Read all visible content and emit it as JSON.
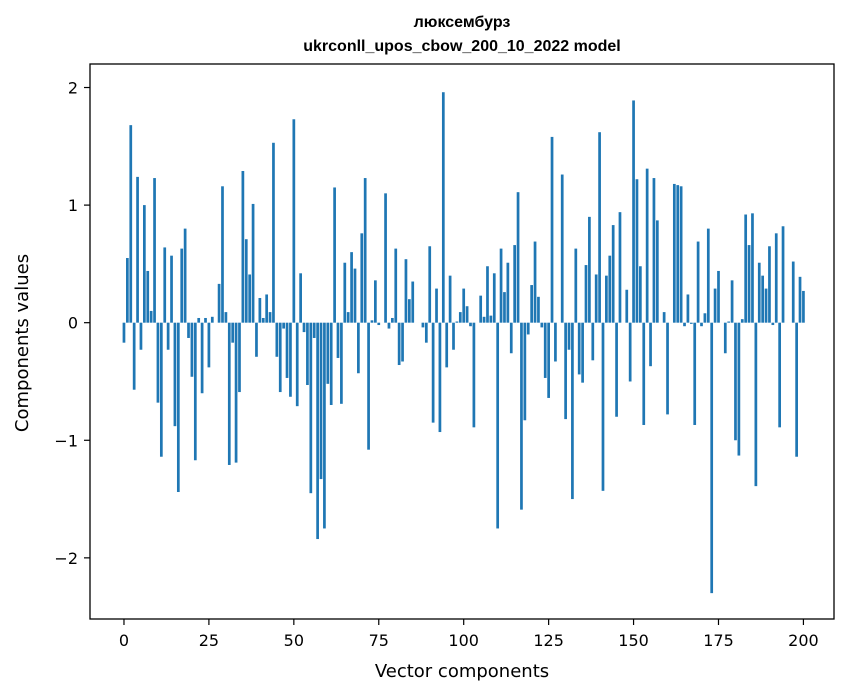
{
  "chart_data": {
    "type": "bar",
    "title_line1": "люксембурз",
    "title_line2": "ukrconll_upos_cbow_200_10_2022 model",
    "xlabel": "Vector components",
    "ylabel": "Components values",
    "xlim": [
      -10,
      209
    ],
    "ylim": [
      -2.52,
      2.2
    ],
    "xticks": [
      0,
      25,
      50,
      75,
      100,
      125,
      150,
      175,
      200
    ],
    "yticks": [
      2,
      1,
      0,
      -1,
      -2
    ],
    "ytick_labels": [
      "2",
      "1",
      "0",
      "−1",
      "−2"
    ],
    "bar_color": "#1f77b4",
    "grid": false,
    "values": [
      -0.17,
      0.55,
      1.68,
      -0.57,
      1.24,
      -0.23,
      1.0,
      0.44,
      0.1,
      1.23,
      -0.68,
      -1.14,
      0.64,
      -0.23,
      0.57,
      -0.88,
      -1.44,
      0.63,
      0.8,
      -0.13,
      -0.46,
      -1.17,
      0.04,
      -0.6,
      0.04,
      -0.38,
      0.05,
      0.0,
      0.33,
      1.16,
      0.09,
      -1.21,
      -0.17,
      -1.19,
      -0.59,
      1.29,
      0.71,
      0.41,
      1.01,
      -0.29,
      0.21,
      0.04,
      0.24,
      0.09,
      1.53,
      -0.29,
      -0.59,
      -0.05,
      -0.47,
      -0.63,
      1.73,
      -0.71,
      0.42,
      -0.08,
      -0.53,
      -1.45,
      -0.13,
      -1.84,
      -1.33,
      -1.75,
      -0.52,
      -0.7,
      1.15,
      -0.3,
      -0.69,
      0.51,
      0.09,
      0.6,
      0.46,
      -0.43,
      0.76,
      1.23,
      -1.08,
      0.02,
      0.36,
      -0.02,
      0.0,
      1.1,
      -0.05,
      0.04,
      0.63,
      -0.36,
      -0.33,
      0.54,
      0.2,
      0.35,
      0.0,
      0.0,
      -0.04,
      -0.17,
      0.65,
      -0.85,
      0.29,
      -0.93,
      1.96,
      -0.38,
      0.4,
      -0.23,
      0.01,
      0.09,
      0.29,
      0.14,
      -0.03,
      -0.89,
      0.0,
      0.23,
      0.05,
      0.48,
      0.06,
      0.42,
      -1.75,
      0.63,
      0.26,
      0.51,
      -0.26,
      0.66,
      1.11,
      -1.59,
      -0.83,
      -0.1,
      0.32,
      0.69,
      0.22,
      -0.04,
      -0.47,
      -0.64,
      1.58,
      -0.33,
      0.0,
      1.26,
      -0.82,
      -0.23,
      -1.5,
      0.63,
      -0.44,
      -0.51,
      0.49,
      0.9,
      -0.32,
      0.41,
      1.62,
      -1.43,
      0.4,
      0.57,
      0.83,
      -0.8,
      0.94,
      0.0,
      0.28,
      -0.5,
      1.89,
      1.22,
      0.48,
      -0.87,
      1.31,
      -0.37,
      1.23,
      0.87,
      0.0,
      0.09,
      -0.78,
      0.0,
      1.18,
      1.17,
      1.16,
      -0.03,
      0.24,
      -0.01,
      -0.87,
      0.69,
      -0.03,
      0.08,
      0.8,
      -2.3,
      0.29,
      0.44,
      0.0,
      -0.26,
      0.01,
      0.36,
      -1.0,
      -1.13,
      0.03,
      0.92,
      0.66,
      0.93,
      -1.39,
      0.51,
      0.4,
      0.29,
      0.65,
      -0.02,
      0.76,
      -0.89,
      0.82,
      0.0,
      0.0,
      0.52,
      -1.14,
      0.39,
      0.27
    ]
  }
}
